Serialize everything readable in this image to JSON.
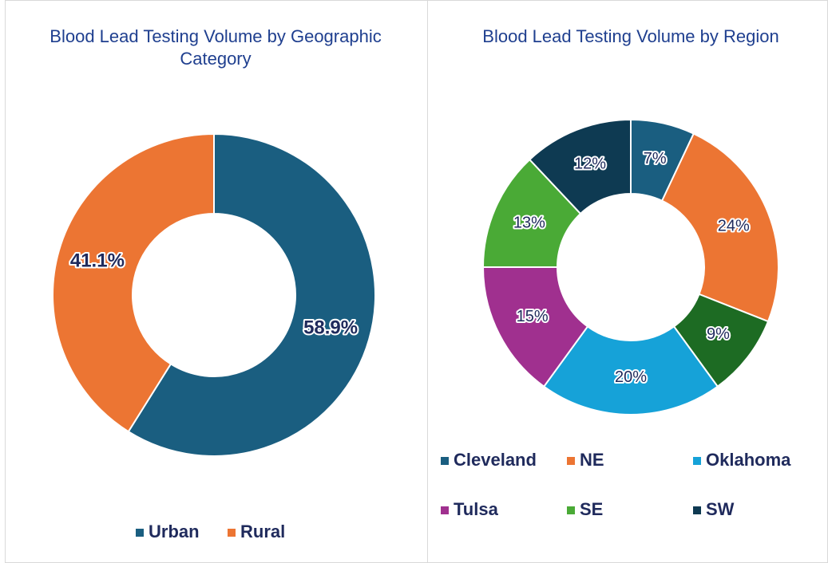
{
  "chart_data": [
    {
      "type": "donut",
      "title": "Blood Lead Testing Volume by Geographic Category",
      "categories": [
        "Urban",
        "Rural"
      ],
      "values": [
        58.9,
        41.1
      ],
      "value_labels": [
        "58.9%",
        "41.1%"
      ],
      "colors": [
        "#1a5e80",
        "#ec7533"
      ],
      "legend": "bottom"
    },
    {
      "type": "donut",
      "title": "Blood Lead Testing Volume by Region",
      "categories": [
        "Cleveland",
        "NE",
        null,
        "Oklahoma",
        "Tulsa",
        "SE",
        "SW"
      ],
      "values": [
        7,
        24,
        9,
        20,
        15,
        13,
        12
      ],
      "value_labels": [
        "7%",
        "24%",
        "9%",
        "20%",
        "15%",
        "13%",
        "12%"
      ],
      "colors": [
        "#1a5e80",
        "#ec7533",
        "#1d6b23",
        "#16a2d8",
        "#a0308f",
        "#4aaa36",
        "#0e3a52"
      ],
      "legend": "bottom"
    }
  ]
}
